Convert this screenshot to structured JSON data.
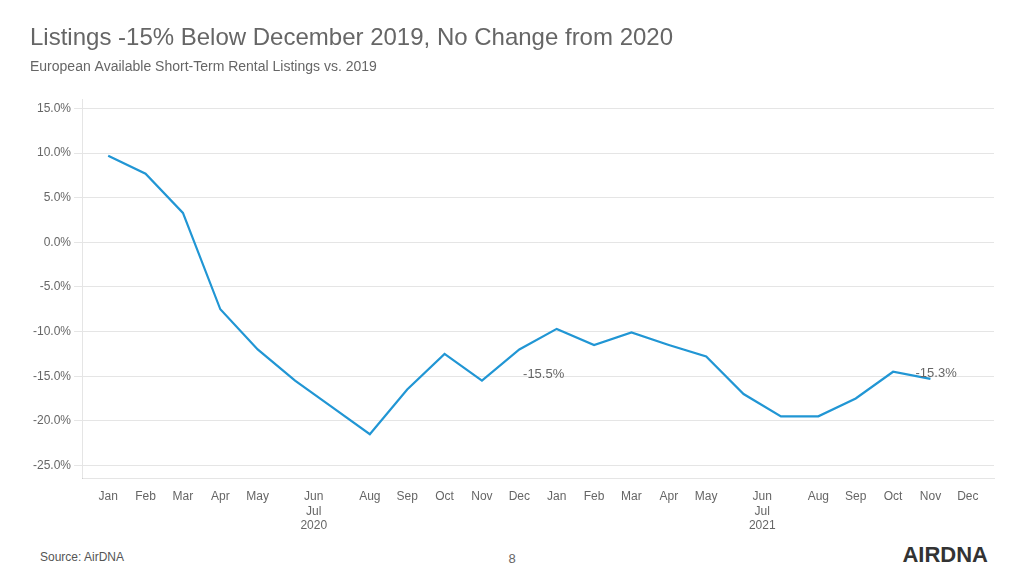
{
  "chart_data": {
    "type": "line",
    "title": "Listings -15% Below December 2019, No Change from 2020",
    "subtitle": "European Available Short-Term Rental Listings vs. 2019",
    "source": "Source: AirDNA",
    "page_number": "8",
    "logo": "AIRDNA",
    "x": [
      0,
      1,
      2,
      3,
      4,
      5,
      6,
      7,
      8,
      9,
      10,
      11,
      12,
      13,
      14,
      15,
      16,
      17,
      18,
      19,
      20,
      21,
      22
    ],
    "values": [
      0.097,
      0.077,
      0.033,
      -0.075,
      -0.12,
      -0.155,
      -0.185,
      -0.215,
      -0.165,
      -0.125,
      -0.155,
      -0.12,
      -0.097,
      -0.115,
      -0.101,
      -0.115,
      -0.128,
      -0.17,
      -0.195,
      -0.195,
      -0.175,
      -0.145,
      -0.153
    ],
    "color": "#2196d4",
    "xlim": [
      -0.7,
      23.7
    ],
    "xticks": [
      {
        "value": 0,
        "label": "Jan"
      },
      {
        "value": 1,
        "label": "Feb"
      },
      {
        "value": 2,
        "label": "Mar"
      },
      {
        "value": 3,
        "label": "Apr"
      },
      {
        "value": 4,
        "label": "May"
      },
      {
        "value": 5.5,
        "label": "Jun\nJul\n2020"
      },
      {
        "value": 7,
        "label": "Aug"
      },
      {
        "value": 8,
        "label": "Sep"
      },
      {
        "value": 9,
        "label": "Oct"
      },
      {
        "value": 10,
        "label": "Nov"
      },
      {
        "value": 11,
        "label": "Dec"
      },
      {
        "value": 12,
        "label": "Jan"
      },
      {
        "value": 13,
        "label": "Feb"
      },
      {
        "value": 14,
        "label": "Mar"
      },
      {
        "value": 15,
        "label": "Apr"
      },
      {
        "value": 16,
        "label": "May"
      },
      {
        "value": 17.5,
        "label": "Jun\nJul\n2021"
      },
      {
        "value": 19,
        "label": "Aug"
      },
      {
        "value": 20,
        "label": "Sep"
      },
      {
        "value": 21,
        "label": "Oct"
      },
      {
        "value": 22,
        "label": "Nov"
      },
      {
        "value": 23,
        "label": "Dec"
      }
    ],
    "ylim": [
      -0.265,
      0.16
    ],
    "yticks": [
      {
        "value": 0.15,
        "label": "15.0%"
      },
      {
        "value": 0.1,
        "label": "10.0%"
      },
      {
        "value": 0.05,
        "label": "5.0%"
      },
      {
        "value": 0.0,
        "label": "0.0%"
      },
      {
        "value": -0.05,
        "label": "-5.0%"
      },
      {
        "value": -0.1,
        "label": "-10.0%"
      },
      {
        "value": -0.15,
        "label": "-15.0%"
      },
      {
        "value": -0.2,
        "label": "-20.0%"
      },
      {
        "value": -0.25,
        "label": "-25.0%"
      }
    ],
    "grid": "y",
    "annotations": [
      {
        "text": "-15.5%",
        "x": 11.1,
        "y": -0.148
      },
      {
        "text": "-15.3%",
        "x": 21.6,
        "y": -0.147
      }
    ]
  }
}
